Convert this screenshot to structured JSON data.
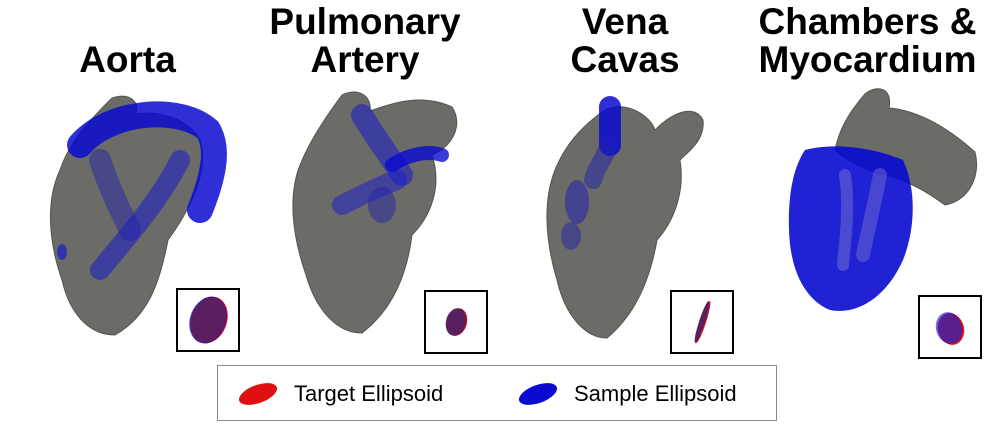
{
  "panels": [
    {
      "id": "aorta",
      "title": "Aorta"
    },
    {
      "id": "pulmonary",
      "title": "Pulmonary\nArtery"
    },
    {
      "id": "vena",
      "title": "Vena\nCavas"
    },
    {
      "id": "chambers",
      "title": "Chambers &\nMyocardium"
    }
  ],
  "legend": {
    "target_label": "Target Ellipsoid",
    "sample_label": "Sample Ellipsoid"
  },
  "colors": {
    "heart": "#6b6b68",
    "sample": "#0a0ad0",
    "target": "#e01010",
    "overlap": "#5a1f5e"
  }
}
